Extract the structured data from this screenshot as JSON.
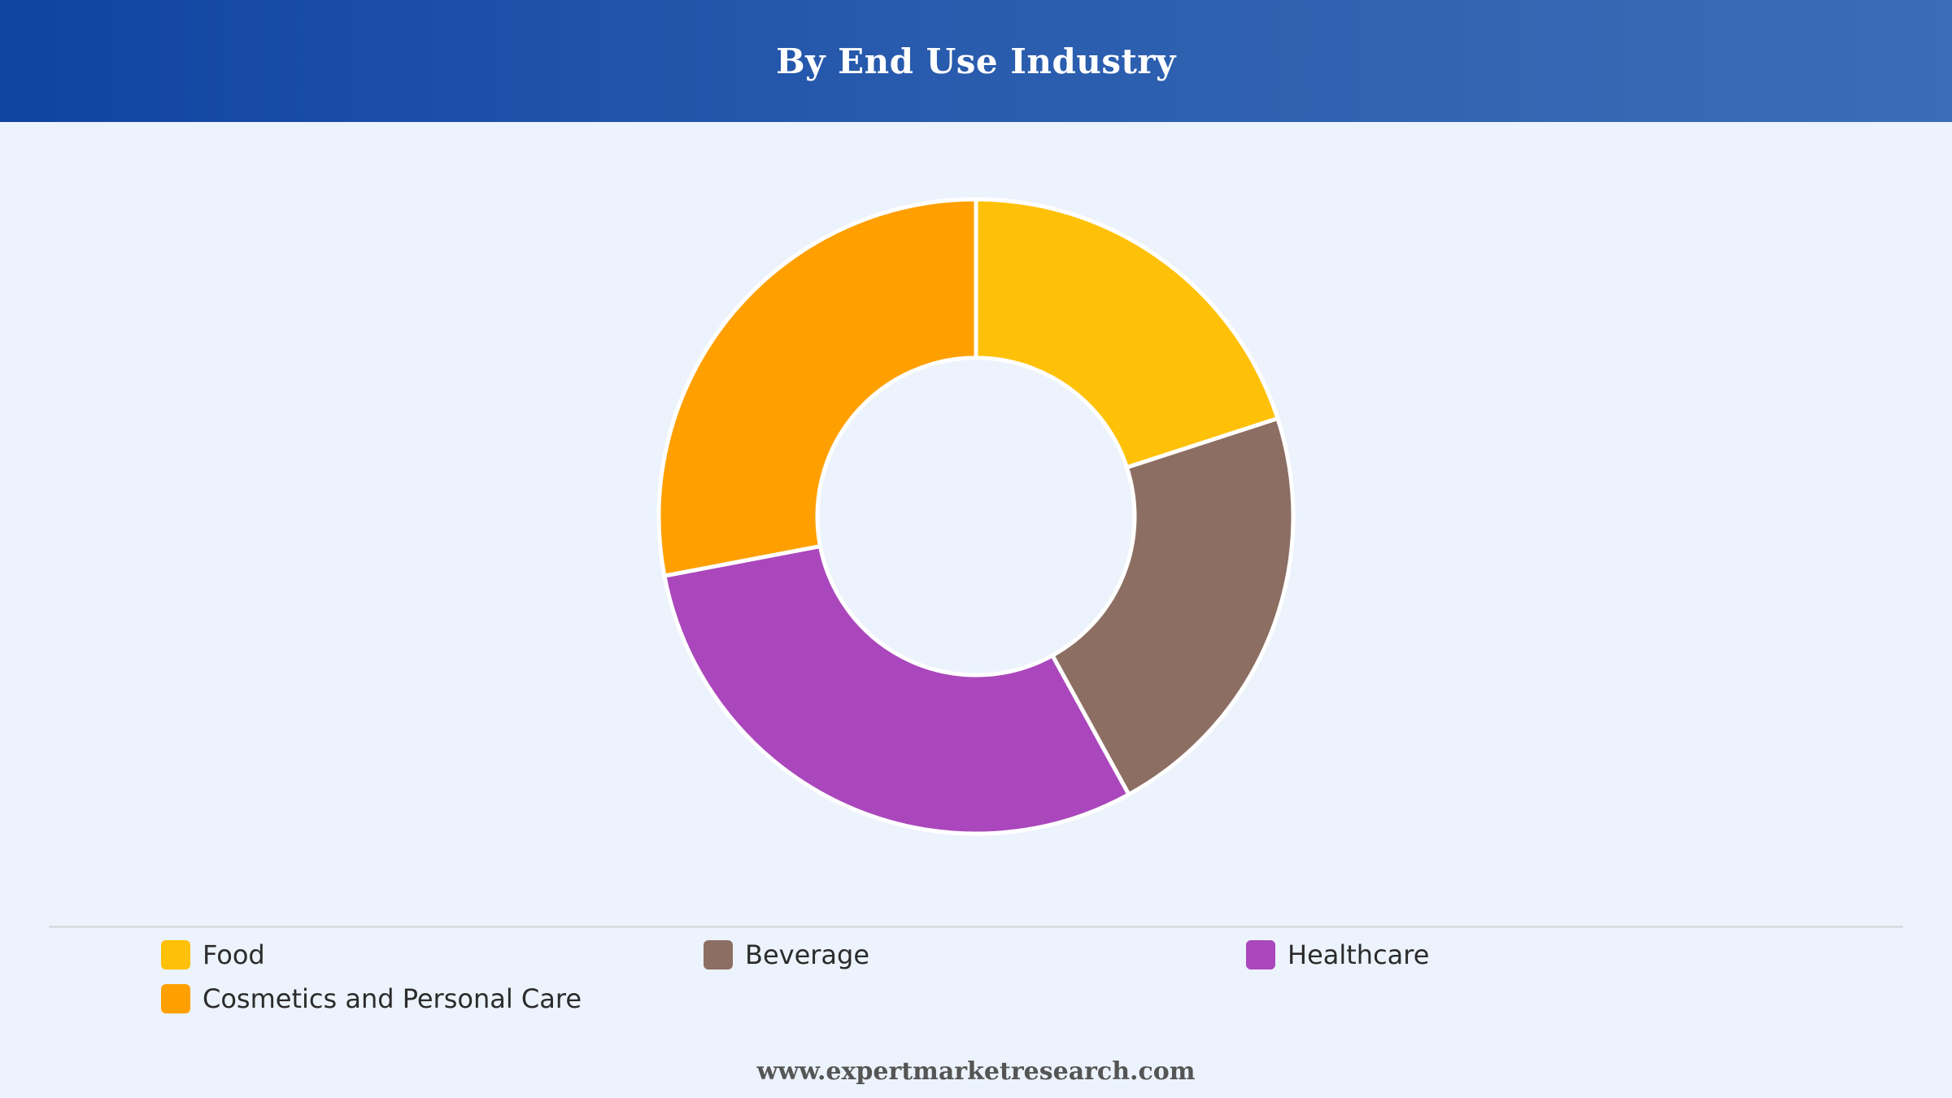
{
  "header": {
    "title": "By End Use Industry"
  },
  "chart_data": {
    "type": "pie",
    "subtype": "donut",
    "categories": [
      "Food",
      "Beverage",
      "Healthcare",
      "Cosmetics and Personal Care"
    ],
    "values": [
      20,
      22,
      30,
      28
    ],
    "colors": [
      "#ffc107",
      "#8d6e63",
      "#ab47bc",
      "#ffa000"
    ],
    "legend_position": "bottom"
  },
  "footer": {
    "source": "www.expertmarketresearch.com"
  }
}
